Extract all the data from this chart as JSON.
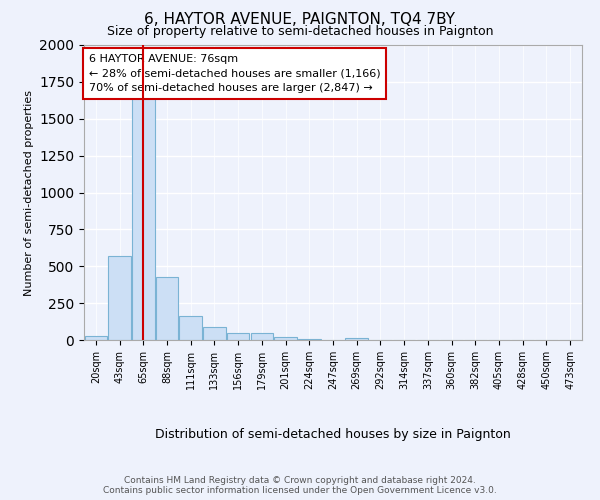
{
  "title": "6, HAYTOR AVENUE, PAIGNTON, TQ4 7BY",
  "subtitle": "Size of property relative to semi-detached houses in Paignton",
  "xlabel": "Distribution of semi-detached houses by size in Paignton",
  "ylabel": "Number of semi-detached properties",
  "footer_line1": "Contains HM Land Registry data © Crown copyright and database right 2024.",
  "footer_line2": "Contains public sector information licensed under the Open Government Licence v3.0.",
  "bin_labels": [
    "20sqm",
    "43sqm",
    "65sqm",
    "88sqm",
    "111sqm",
    "133sqm",
    "156sqm",
    "179sqm",
    "201sqm",
    "224sqm",
    "247sqm",
    "269sqm",
    "292sqm",
    "314sqm",
    "337sqm",
    "360sqm",
    "382sqm",
    "405sqm",
    "428sqm",
    "450sqm",
    "473sqm"
  ],
  "bar_values": [
    30,
    570,
    1680,
    430,
    160,
    90,
    45,
    45,
    20,
    10,
    0,
    15,
    0,
    0,
    0,
    0,
    0,
    0,
    0,
    0,
    0
  ],
  "bar_color": "#ccdff5",
  "bar_edge_color": "#7ab3d4",
  "red_line_x": 1.98,
  "annotation_text_lines": [
    "6 HAYTOR AVENUE: 76sqm",
    "← 28% of semi-detached houses are smaller (1,166)",
    "70% of semi-detached houses are larger (2,847) →"
  ],
  "annotation_box_color": "#ffffff",
  "annotation_border_color": "#cc0000",
  "ylim": [
    0,
    2000
  ],
  "background_color": "#eef2fc",
  "plot_background_color": "#eef2fc",
  "title_fontsize": 11,
  "subtitle_fontsize": 9
}
